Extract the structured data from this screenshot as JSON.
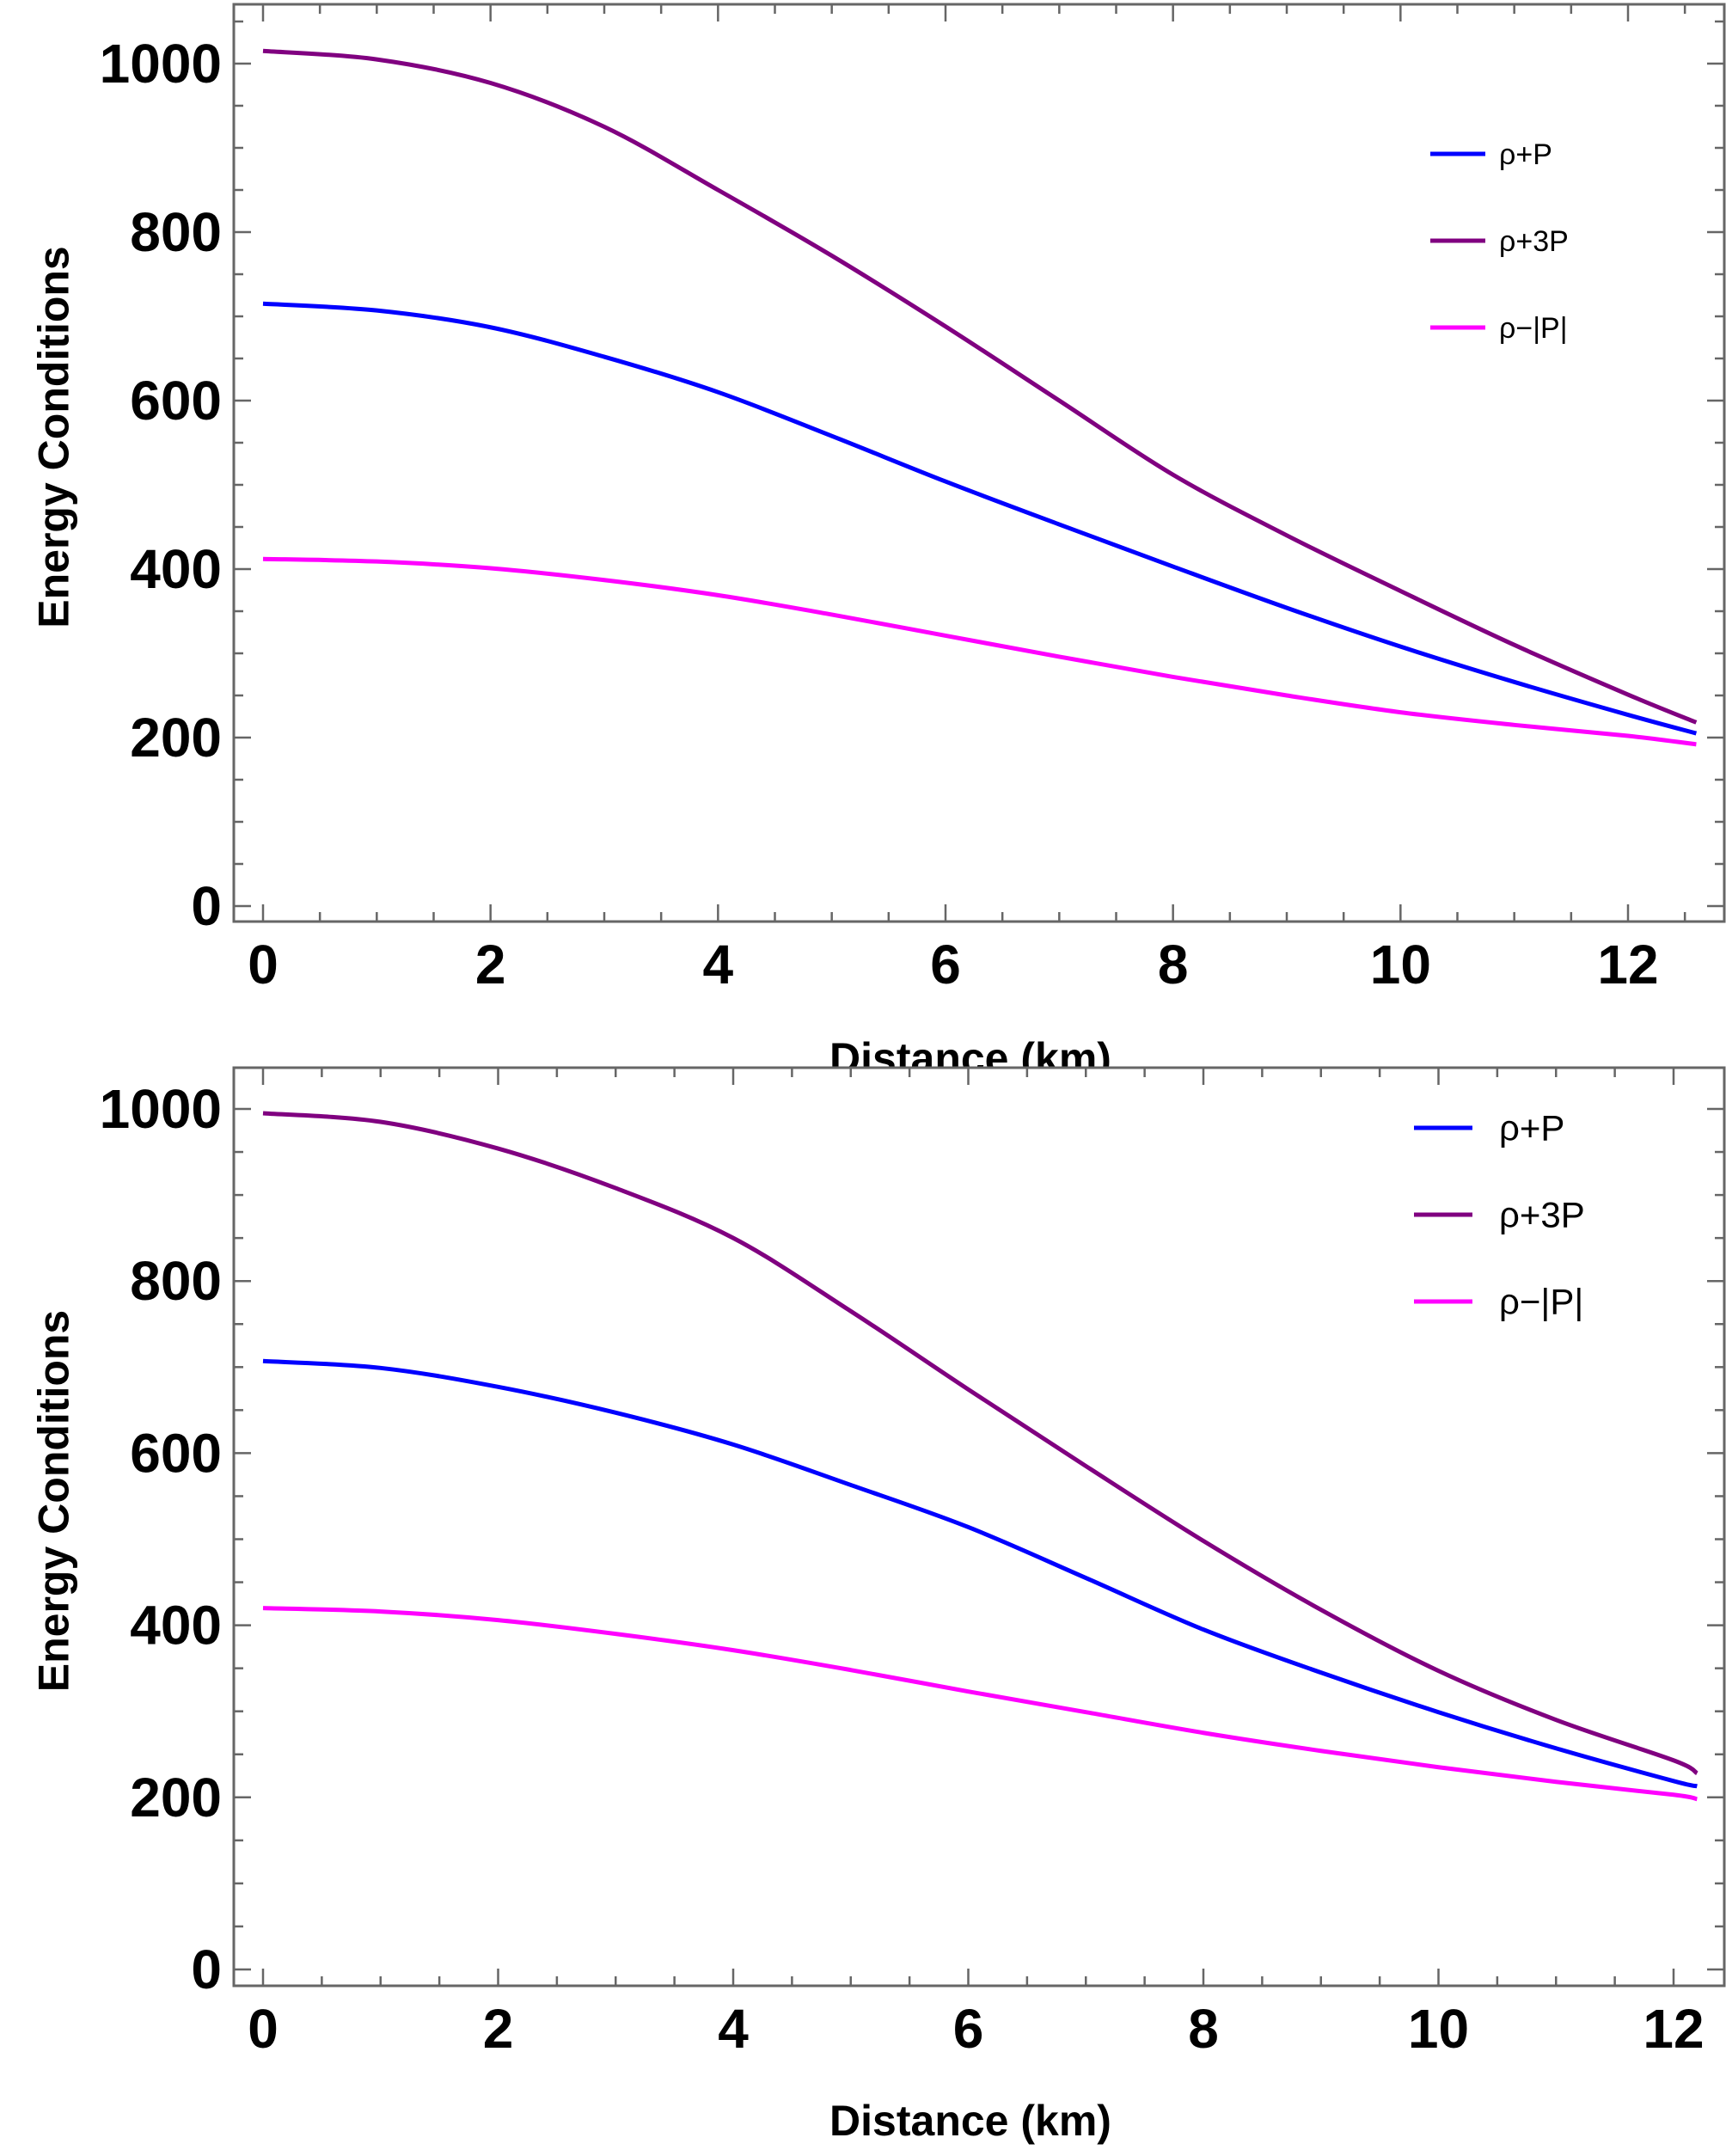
{
  "chart_data": [
    {
      "type": "line",
      "title": "",
      "xlabel": "Distance (km)",
      "ylabel": "Energy Conditions",
      "xlim": [
        -0.25,
        12.9
      ],
      "ylim": [
        -15,
        1065
      ],
      "xticks": [
        0,
        2,
        4,
        6,
        8,
        10,
        12
      ],
      "yticks": [
        0,
        200,
        400,
        600,
        800,
        1000
      ],
      "grid": false,
      "legend_position": "top-right",
      "x": [
        0,
        1,
        2,
        3,
        4,
        5,
        6,
        7,
        8,
        9,
        10,
        11,
        12,
        12.6
      ],
      "series": [
        {
          "name": "ρ+P",
          "color": "#0000ff",
          "values": [
            715,
            707,
            687,
            652,
            610,
            558,
            504,
            453,
            403,
            354,
            308,
            266,
            227,
            205
          ]
        },
        {
          "name": "ρ+3P",
          "color": "#800080",
          "values": [
            1015,
            1005,
            977,
            925,
            850,
            772,
            688,
            600,
            512,
            440,
            374,
            310,
            251,
            218
          ]
        },
        {
          "name": "ρ−|P|",
          "color": "#ff00ff",
          "values": [
            412,
            409,
            401,
            387,
            369,
            346,
            321,
            296,
            272,
            250,
            230,
            215,
            202,
            192
          ]
        }
      ]
    },
    {
      "type": "line",
      "title": "",
      "xlabel": "Distance (km)",
      "ylabel": "Energy Conditions",
      "xlim": [
        -0.25,
        12.5
      ],
      "ylim": [
        -15,
        1050
      ],
      "xticks": [
        0,
        2,
        4,
        6,
        8,
        10,
        12
      ],
      "yticks": [
        0,
        200,
        400,
        600,
        800,
        1000
      ],
      "grid": false,
      "legend_position": "top-right",
      "x": [
        0,
        1,
        2,
        3,
        4,
        5,
        6,
        7,
        8,
        9,
        10,
        11,
        12,
        12.2
      ],
      "series": [
        {
          "name": "ρ+P",
          "color": "#0000ff",
          "values": [
            707,
            699,
            677,
            647,
            610,
            563,
            514,
            455,
            395,
            345,
            299,
            257,
            219,
            213
          ]
        },
        {
          "name": "ρ+3P",
          "color": "#800080",
          "values": [
            995,
            985,
            954,
            908,
            850,
            765,
            674,
            585,
            498,
            418,
            347,
            290,
            243,
            228
          ]
        },
        {
          "name": "ρ−|P|",
          "color": "#ff00ff",
          "values": [
            420,
            416,
            406,
            390,
            371,
            348,
            323,
            299,
            275,
            254,
            235,
            218,
            203,
            198
          ]
        }
      ]
    }
  ]
}
